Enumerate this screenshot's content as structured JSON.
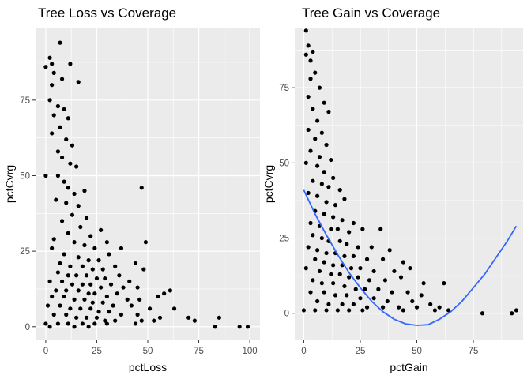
{
  "chart_data": [
    {
      "type": "scatter",
      "title": "Tree Loss vs Coverage",
      "xlabel": "pctLoss",
      "ylabel": "pctCvrg",
      "xlim": [
        -5,
        105
      ],
      "ylim": [
        -4.5,
        99
      ],
      "x_ticks": [
        0,
        25,
        50,
        75,
        100
      ],
      "y_ticks": [
        0,
        25,
        50,
        75
      ],
      "x_tick_labels": [
        "0",
        "25",
        "50",
        "75",
        "100"
      ],
      "y_tick_labels": [
        "0",
        "25",
        "50",
        "75"
      ],
      "grid": true,
      "panel_background": "#ebebeb",
      "point_color": "#000000",
      "points": [
        [
          7,
          94
        ],
        [
          2,
          89
        ],
        [
          3,
          87
        ],
        [
          12,
          87
        ],
        [
          0,
          86
        ],
        [
          4,
          84
        ],
        [
          8,
          82
        ],
        [
          16,
          81
        ],
        [
          3,
          80
        ],
        [
          2,
          75
        ],
        [
          6,
          73
        ],
        [
          9,
          72
        ],
        [
          4,
          70
        ],
        [
          11,
          69
        ],
        [
          7,
          66
        ],
        [
          3,
          64
        ],
        [
          10,
          62
        ],
        [
          13,
          60
        ],
        [
          6,
          58
        ],
        [
          8,
          56
        ],
        [
          12,
          54
        ],
        [
          15,
          53
        ],
        [
          0,
          50
        ],
        [
          6,
          50
        ],
        [
          9,
          48
        ],
        [
          11,
          46
        ],
        [
          14,
          44
        ],
        [
          19,
          45
        ],
        [
          47,
          46
        ],
        [
          5,
          42
        ],
        [
          10,
          41
        ],
        [
          16,
          40
        ],
        [
          13,
          37
        ],
        [
          20,
          36
        ],
        [
          8,
          35
        ],
        [
          17,
          33
        ],
        [
          11,
          31
        ],
        [
          22,
          30
        ],
        [
          27,
          32
        ],
        [
          4,
          29
        ],
        [
          14,
          28
        ],
        [
          19,
          27
        ],
        [
          24,
          26
        ],
        [
          30,
          28
        ],
        [
          49,
          28
        ],
        [
          3,
          26
        ],
        [
          9,
          24
        ],
        [
          16,
          23
        ],
        [
          21,
          22
        ],
        [
          26,
          22
        ],
        [
          31,
          24
        ],
        [
          37,
          26
        ],
        [
          7,
          21
        ],
        [
          12,
          20
        ],
        [
          18,
          20
        ],
        [
          23,
          19
        ],
        [
          28,
          19
        ],
        [
          34,
          20
        ],
        [
          44,
          21
        ],
        [
          6,
          18
        ],
        [
          11,
          17
        ],
        [
          15,
          17
        ],
        [
          20,
          17
        ],
        [
          25,
          16
        ],
        [
          29,
          16
        ],
        [
          36,
          17
        ],
        [
          41,
          15
        ],
        [
          48,
          19
        ],
        [
          2,
          15
        ],
        [
          8,
          15
        ],
        [
          13,
          14
        ],
        [
          18,
          14
        ],
        [
          22,
          14
        ],
        [
          27,
          13
        ],
        [
          32,
          14
        ],
        [
          38,
          13
        ],
        [
          45,
          13
        ],
        [
          55,
          10
        ],
        [
          5,
          12
        ],
        [
          10,
          12
        ],
        [
          16,
          12
        ],
        [
          21,
          11
        ],
        [
          24,
          11
        ],
        [
          30,
          10
        ],
        [
          35,
          11
        ],
        [
          40,
          9
        ],
        [
          46,
          9
        ],
        [
          58,
          11
        ],
        [
          61,
          12
        ],
        [
          3,
          10
        ],
        [
          9,
          10
        ],
        [
          14,
          9
        ],
        [
          19,
          9
        ],
        [
          23,
          8
        ],
        [
          28,
          8
        ],
        [
          33,
          7
        ],
        [
          42,
          7
        ],
        [
          51,
          6
        ],
        [
          63,
          6
        ],
        [
          1,
          7
        ],
        [
          7,
          7
        ],
        [
          12,
          6
        ],
        [
          17,
          6
        ],
        [
          22,
          6
        ],
        [
          26,
          5
        ],
        [
          31,
          5
        ],
        [
          37,
          4
        ],
        [
          45,
          4
        ],
        [
          56,
          3
        ],
        [
          4,
          4
        ],
        [
          10,
          4
        ],
        [
          15,
          3
        ],
        [
          20,
          3
        ],
        [
          25,
          3
        ],
        [
          29,
          2
        ],
        [
          34,
          2
        ],
        [
          47,
          2
        ],
        [
          53,
          2
        ],
        [
          70,
          3
        ],
        [
          73,
          2
        ],
        [
          0,
          1
        ],
        [
          6,
          1
        ],
        [
          11,
          1
        ],
        [
          18,
          1
        ],
        [
          24,
          1
        ],
        [
          30,
          1
        ],
        [
          44,
          1
        ],
        [
          83,
          0
        ],
        [
          85,
          3
        ],
        [
          95,
          0
        ],
        [
          99,
          0
        ],
        [
          2,
          0
        ],
        [
          14,
          0
        ],
        [
          21,
          0
        ]
      ]
    },
    {
      "type": "scatter",
      "title": "Tree Gain vs Coverage",
      "xlabel": "pctGain",
      "ylabel": "pctCvrg",
      "xlim": [
        -4,
        97
      ],
      "ylim": [
        -9,
        95
      ],
      "x_ticks": [
        0,
        25,
        50,
        75
      ],
      "y_ticks": [
        0,
        25,
        50,
        75
      ],
      "x_tick_labels": [
        "0",
        "25",
        "50",
        "75"
      ],
      "y_tick_labels": [
        "0",
        "25",
        "50",
        "75"
      ],
      "grid": true,
      "panel_background": "#ebebeb",
      "point_color": "#000000",
      "smooth_color": "#3366ff",
      "smooth": {
        "x": [
          0,
          5,
          10,
          15,
          20,
          25,
          30,
          35,
          40,
          45,
          50,
          55,
          60,
          65,
          70,
          75,
          80,
          85,
          90,
          94
        ],
        "y": [
          41,
          33,
          26,
          19.5,
          13.5,
          8.5,
          4,
          0.5,
          -2,
          -3.5,
          -4,
          -3.8,
          -2,
          0.5,
          4,
          8.5,
          13,
          18.5,
          24,
          29
        ]
      },
      "points": [
        [
          1,
          94
        ],
        [
          2,
          89
        ],
        [
          4,
          87
        ],
        [
          1,
          86
        ],
        [
          3,
          84
        ],
        [
          5,
          80
        ],
        [
          3,
          78
        ],
        [
          7,
          75
        ],
        [
          2,
          72
        ],
        [
          9,
          70
        ],
        [
          4,
          68
        ],
        [
          11,
          67
        ],
        [
          6,
          64
        ],
        [
          2,
          61
        ],
        [
          8,
          60
        ],
        [
          5,
          58
        ],
        [
          10,
          56
        ],
        [
          3,
          54
        ],
        [
          7,
          52
        ],
        [
          12,
          51
        ],
        [
          1,
          50
        ],
        [
          6,
          49
        ],
        [
          9,
          47
        ],
        [
          13,
          45
        ],
        [
          4,
          44
        ],
        [
          8,
          43
        ],
        [
          11,
          42
        ],
        [
          16,
          41
        ],
        [
          2,
          40
        ],
        [
          6,
          39
        ],
        [
          10,
          37
        ],
        [
          14,
          36
        ],
        [
          18,
          38
        ],
        [
          5,
          34
        ],
        [
          9,
          33
        ],
        [
          13,
          32
        ],
        [
          17,
          31
        ],
        [
          22,
          30
        ],
        [
          3,
          30
        ],
        [
          7,
          29
        ],
        [
          12,
          28
        ],
        [
          15,
          28
        ],
        [
          20,
          27
        ],
        [
          26,
          28
        ],
        [
          34,
          28
        ],
        [
          4,
          26
        ],
        [
          8,
          25
        ],
        [
          11,
          24
        ],
        [
          16,
          24
        ],
        [
          19,
          23
        ],
        [
          24,
          22
        ],
        [
          30,
          22
        ],
        [
          38,
          21
        ],
        [
          2,
          22
        ],
        [
          6,
          21
        ],
        [
          10,
          20
        ],
        [
          14,
          20
        ],
        [
          18,
          19
        ],
        [
          22,
          19
        ],
        [
          28,
          18
        ],
        [
          35,
          18
        ],
        [
          44,
          17
        ],
        [
          5,
          18
        ],
        [
          9,
          17
        ],
        [
          13,
          16
        ],
        [
          17,
          16
        ],
        [
          21,
          15
        ],
        [
          25,
          15
        ],
        [
          31,
          14
        ],
        [
          40,
          14
        ],
        [
          47,
          15
        ],
        [
          1,
          15
        ],
        [
          7,
          14
        ],
        [
          12,
          13
        ],
        [
          16,
          13
        ],
        [
          20,
          12
        ],
        [
          24,
          12
        ],
        [
          29,
          11
        ],
        [
          36,
          11
        ],
        [
          43,
          12
        ],
        [
          53,
          10
        ],
        [
          62,
          10
        ],
        [
          4,
          11
        ],
        [
          8,
          10
        ],
        [
          13,
          10
        ],
        [
          18,
          9
        ],
        [
          23,
          8
        ],
        [
          27,
          8
        ],
        [
          33,
          8
        ],
        [
          39,
          7
        ],
        [
          46,
          7
        ],
        [
          52,
          6
        ],
        [
          3,
          7
        ],
        [
          9,
          7
        ],
        [
          14,
          6
        ],
        [
          19,
          6
        ],
        [
          25,
          5
        ],
        [
          31,
          5
        ],
        [
          37,
          4
        ],
        [
          48,
          4
        ],
        [
          56,
          3
        ],
        [
          60,
          2
        ],
        [
          6,
          4
        ],
        [
          11,
          3
        ],
        [
          17,
          3
        ],
        [
          22,
          3
        ],
        [
          28,
          2
        ],
        [
          35,
          2
        ],
        [
          42,
          2
        ],
        [
          50,
          2
        ],
        [
          64,
          1
        ],
        [
          0,
          1
        ],
        [
          5,
          1
        ],
        [
          10,
          1
        ],
        [
          15,
          1
        ],
        [
          20,
          1
        ],
        [
          26,
          1
        ],
        [
          44,
          1
        ],
        [
          58,
          1
        ],
        [
          79,
          0
        ],
        [
          92,
          0
        ],
        [
          94,
          1
        ]
      ]
    }
  ]
}
